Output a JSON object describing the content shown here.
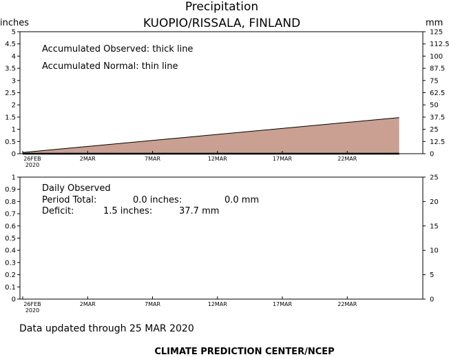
{
  "title": "Precipitation",
  "subtitle": "KUOPIO/RISSALA, FINLAND",
  "footer": "Data updated through 25 MAR 2020",
  "credit": "CLIMATE PREDICTION CENTER/NCEP",
  "chart_data": [
    {
      "type": "area",
      "left_axis_label": "inches",
      "right_axis_label": "mm",
      "yticks_left": [
        "0",
        "0.5",
        "1",
        "1.5",
        "2",
        "2.5",
        "3",
        "3.5",
        "4",
        "4.5",
        "5"
      ],
      "yticks_right": [
        "0",
        "12.5",
        "25",
        "37.5",
        "50",
        "62.5",
        "75",
        "87.5",
        "100",
        "112.5",
        "125"
      ],
      "ylim": [
        0,
        5
      ],
      "x_ticks": [
        "26FEB",
        "2MAR",
        "7MAR",
        "12MAR",
        "17MAR",
        "22MAR"
      ],
      "x_year_label": "2020",
      "annotations": [
        "Accumulated Observed: thick line",
        "Accumulated Normal: thin line"
      ],
      "series": [
        {
          "name": "Accumulated Normal",
          "x_days": [
            0,
            29
          ],
          "values": [
            0.05,
            1.48
          ],
          "color": "#c9a092"
        },
        {
          "name": "Accumulated Observed",
          "x_days": [
            0,
            29
          ],
          "values": [
            0.0,
            0.0
          ],
          "color": "#000000"
        }
      ]
    },
    {
      "type": "bar",
      "left_axis_label": "",
      "right_axis_label": "",
      "yticks_left": [
        "0",
        "0.1",
        "0.2",
        "0.3",
        "0.4",
        "0.5",
        "0.6",
        "0.7",
        "0.8",
        "0.9",
        "1"
      ],
      "yticks_right": [
        "0",
        "5",
        "10",
        "15",
        "20",
        "25"
      ],
      "ylim": [
        0,
        1
      ],
      "x_ticks": [
        "26FEB",
        "2MAR",
        "7MAR",
        "12MAR",
        "17MAR",
        "22MAR"
      ],
      "x_year_label": "2020",
      "annotations": {
        "heading": "Daily Observed",
        "period_label": "Period Total:",
        "period_inches": "0.0 inches:",
        "period_mm": "0.0 mm",
        "deficit_label": "Deficit:",
        "deficit_inches": "1.5 inches:",
        "deficit_mm": "37.7 mm"
      },
      "series": [
        {
          "name": "Daily Observed",
          "values": []
        }
      ]
    }
  ]
}
